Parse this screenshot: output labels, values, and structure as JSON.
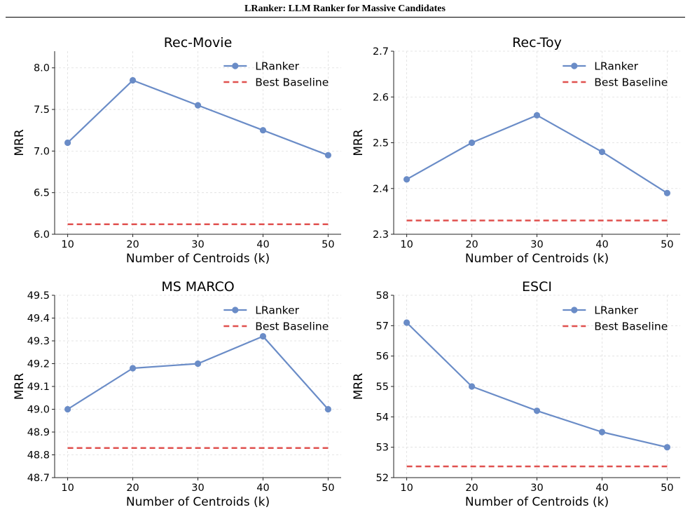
{
  "header": {
    "title": "LRanker: LLM Ranker for Massive Candidates"
  },
  "colors": {
    "lranker": "#6a8cc7",
    "baseline": "#e0514f",
    "grid": "#dedede",
    "axis": "#222222"
  },
  "chart_data": [
    {
      "type": "line",
      "title": "Rec-Movie",
      "xlabel": "Number of Centroids (k)",
      "ylabel": "MRR",
      "x": [
        10,
        20,
        30,
        40,
        50
      ],
      "xticks": [
        "10",
        "20",
        "30",
        "40",
        "50"
      ],
      "xlim": [
        8,
        52
      ],
      "ylim": [
        6.0,
        8.2
      ],
      "yticks": [
        "6.0",
        "6.5",
        "7.0",
        "7.5",
        "8.0"
      ],
      "grid": true,
      "legend": "top-right",
      "series": [
        {
          "name": "LRanker",
          "style": "solid-marker",
          "values": [
            7.1,
            7.85,
            7.55,
            7.25,
            6.95
          ]
        },
        {
          "name": "Best Baseline",
          "style": "dashed",
          "values": [
            6.12,
            6.12,
            6.12,
            6.12,
            6.12
          ]
        }
      ]
    },
    {
      "type": "line",
      "title": "Rec-Toy",
      "xlabel": "Number of Centroids (k)",
      "ylabel": "MRR",
      "x": [
        10,
        20,
        30,
        40,
        50
      ],
      "xticks": [
        "10",
        "20",
        "30",
        "40",
        "50"
      ],
      "xlim": [
        8,
        52
      ],
      "ylim": [
        2.3,
        2.7
      ],
      "yticks": [
        "2.3",
        "2.4",
        "2.5",
        "2.6",
        "2.7"
      ],
      "grid": true,
      "legend": "top-right",
      "series": [
        {
          "name": "LRanker",
          "style": "solid-marker",
          "values": [
            2.42,
            2.5,
            2.56,
            2.48,
            2.39
          ]
        },
        {
          "name": "Best Baseline",
          "style": "dashed",
          "values": [
            2.33,
            2.33,
            2.33,
            2.33,
            2.33
          ]
        }
      ]
    },
    {
      "type": "line",
      "title": "MS MARCO",
      "xlabel": "Number of Centroids (k)",
      "ylabel": "MRR",
      "x": [
        10,
        20,
        30,
        40,
        50
      ],
      "xticks": [
        "10",
        "20",
        "30",
        "40",
        "50"
      ],
      "xlim": [
        8,
        52
      ],
      "ylim": [
        48.7,
        49.5
      ],
      "yticks": [
        "48.7",
        "48.8",
        "48.9",
        "49.0",
        "49.1",
        "49.2",
        "49.3",
        "49.4",
        "49.5"
      ],
      "grid": true,
      "legend": "top-right",
      "series": [
        {
          "name": "LRanker",
          "style": "solid-marker",
          "values": [
            49.0,
            49.18,
            49.2,
            49.32,
            49.0
          ]
        },
        {
          "name": "Best Baseline",
          "style": "dashed",
          "values": [
            48.83,
            48.83,
            48.83,
            48.83,
            48.83
          ]
        }
      ]
    },
    {
      "type": "line",
      "title": "ESCI",
      "xlabel": "Number of Centroids (k)",
      "ylabel": "MRR",
      "x": [
        10,
        20,
        30,
        40,
        50
      ],
      "xticks": [
        "10",
        "20",
        "30",
        "40",
        "50"
      ],
      "xlim": [
        8,
        52
      ],
      "ylim": [
        52,
        58
      ],
      "yticks": [
        "52",
        "53",
        "54",
        "55",
        "56",
        "57",
        "58"
      ],
      "grid": true,
      "legend": "top-right",
      "series": [
        {
          "name": "LRanker",
          "style": "solid-marker",
          "values": [
            57.1,
            55.0,
            54.2,
            53.5,
            53.0
          ]
        },
        {
          "name": "Best Baseline",
          "style": "dashed",
          "values": [
            52.37,
            52.37,
            52.37,
            52.37,
            52.37
          ]
        }
      ]
    }
  ]
}
